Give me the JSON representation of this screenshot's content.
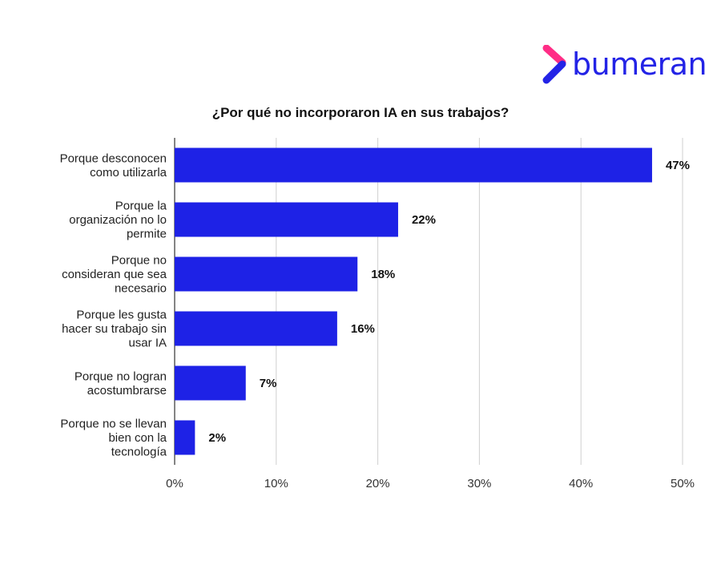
{
  "brand": {
    "name": "bumeran",
    "icon": "bumeran-chevron-logo",
    "colors": {
      "text": "#2323e6",
      "chevron_top": "#ff2d86",
      "chevron_bottom": "#2323e6"
    }
  },
  "chart_data": {
    "type": "bar",
    "orientation": "horizontal",
    "title": "¿Por qué no incorporaron IA en sus trabajos?",
    "xlabel": "",
    "ylabel": "",
    "categories": [
      [
        "Porque desconocen",
        "como utilizarla"
      ],
      [
        "Porque la",
        "organización no lo",
        "permite"
      ],
      [
        "Porque no",
        "consideran que sea",
        "necesario"
      ],
      [
        "Porque les gusta",
        "hacer su trabajo sin",
        "usar IA"
      ],
      [
        "Porque no logran",
        "acostumbrarse"
      ],
      [
        "Porque no se llevan",
        "bien con la",
        "tecnología"
      ]
    ],
    "values": [
      47,
      22,
      18,
      16,
      7,
      2
    ],
    "data_labels": [
      "47%",
      "22%",
      "18%",
      "16%",
      "7%",
      "2%"
    ],
    "xlim": [
      0,
      50
    ],
    "xticks": [
      0,
      10,
      20,
      30,
      40,
      50
    ],
    "xtick_labels": [
      "0%",
      "10%",
      "20%",
      "30%",
      "40%",
      "50%"
    ],
    "grid": true,
    "bar_color": "#1e22e6",
    "legend": "none"
  }
}
